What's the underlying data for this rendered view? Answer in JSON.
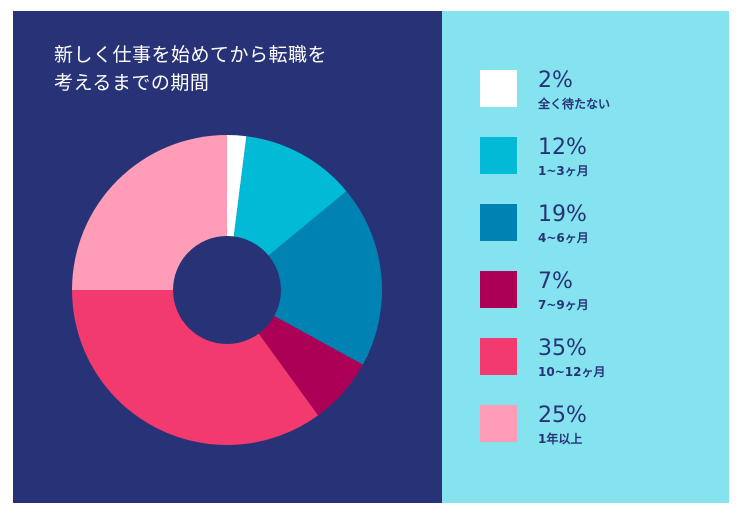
{
  "colors": {
    "left_bg": "#283377",
    "right_bg": "#85e3f0",
    "hole": "#283377"
  },
  "chart_data": {
    "type": "pie",
    "donut": true,
    "title_lines": [
      "新しく仕事を始めてから転職を",
      "考えるまでの期間"
    ],
    "start_angle_deg": 0,
    "direction": "clockwise",
    "slices": [
      {
        "label": "全く待たない",
        "value": 2,
        "value_label": "2%",
        "color": "#ffffff"
      },
      {
        "label": "1~3ヶ月",
        "value": 12,
        "value_label": "12%",
        "color": "#00bad6"
      },
      {
        "label": "4~6ヶ月",
        "value": 19,
        "value_label": "19%",
        "color": "#0083b3"
      },
      {
        "label": "7~9ヶ月",
        "value": 7,
        "value_label": "7%",
        "color": "#ab0056"
      },
      {
        "label": "10~12ヶ月",
        "value": 35,
        "value_label": "35%",
        "color": "#f23a6f"
      },
      {
        "label": "1年以上",
        "value": 25,
        "value_label": "25%",
        "color": "#ff9cb8"
      }
    ],
    "legend_position": "right"
  }
}
